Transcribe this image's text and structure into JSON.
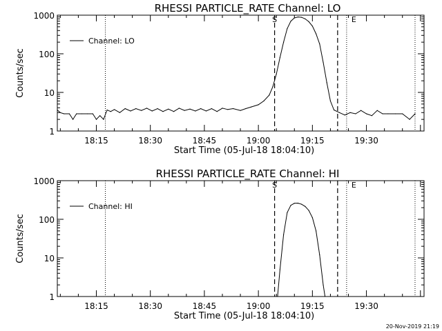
{
  "figure": {
    "footer": "20-Nov-2019 21:19"
  },
  "chart_data": [
    {
      "type": "line",
      "title": "RHESSI PARTICLE_RATE Channel: LO",
      "xlabel": "Start Time (05-Jul-18 18:04:10)",
      "ylabel": "Counts/sec",
      "y_scale": "log",
      "xlim": [
        "18:04:10",
        "19:46:00"
      ],
      "ylim": [
        1,
        1000
      ],
      "x_ticks": [
        "18:15",
        "18:30",
        "18:45",
        "19:00",
        "19:15",
        "19:30"
      ],
      "y_ticks": [
        "1",
        "10",
        "100",
        "1000"
      ],
      "legend": {
        "position": "top-left",
        "entries": [
          "Channel: LO"
        ]
      },
      "markers": [
        {
          "label": "S",
          "time": "19:04:30",
          "style": "dashed"
        },
        {
          "label": "E",
          "time": "19:26:30",
          "style": "dotted"
        }
      ],
      "dashed_lines": [
        "19:04:30",
        "19:22:00"
      ],
      "dotted_lines": [
        "18:04:10",
        "18:17:30",
        "19:24:30",
        "19:43:30"
      ],
      "series": [
        {
          "name": "Channel: LO",
          "points": [
            [
              "18:04:10",
              3.5
            ],
            [
              "18:05:00",
              3.0
            ],
            [
              "18:06:00",
              2.8
            ],
            [
              "18:07:30",
              2.8
            ],
            [
              "18:08:30",
              2.0
            ],
            [
              "18:09:30",
              2.8
            ],
            [
              "18:11:00",
              2.8
            ],
            [
              "18:12:30",
              2.8
            ],
            [
              "18:14:00",
              2.8
            ],
            [
              "18:15:00",
              2.0
            ],
            [
              "18:16:00",
              2.5
            ],
            [
              "18:17:00",
              2.0
            ],
            [
              "18:18:00",
              3.5
            ],
            [
              "18:19:00",
              3.2
            ],
            [
              "18:20:00",
              3.6
            ],
            [
              "18:21:30",
              3.0
            ],
            [
              "18:23:00",
              3.8
            ],
            [
              "18:24:30",
              3.3
            ],
            [
              "18:26:00",
              3.8
            ],
            [
              "18:27:30",
              3.4
            ],
            [
              "18:29:00",
              3.9
            ],
            [
              "18:30:30",
              3.3
            ],
            [
              "18:32:00",
              3.8
            ],
            [
              "18:33:30",
              3.2
            ],
            [
              "18:35:00",
              3.7
            ],
            [
              "18:36:30",
              3.2
            ],
            [
              "18:38:00",
              3.9
            ],
            [
              "18:39:30",
              3.4
            ],
            [
              "18:41:00",
              3.7
            ],
            [
              "18:42:30",
              3.3
            ],
            [
              "18:44:00",
              3.8
            ],
            [
              "18:45:30",
              3.3
            ],
            [
              "18:47:00",
              3.8
            ],
            [
              "18:48:30",
              3.2
            ],
            [
              "18:50:00",
              3.9
            ],
            [
              "18:51:30",
              3.6
            ],
            [
              "18:53:00",
              3.8
            ],
            [
              "18:55:00",
              3.4
            ],
            [
              "18:56:30",
              3.8
            ],
            [
              "18:58:00",
              4.2
            ],
            [
              "19:00:00",
              4.8
            ],
            [
              "19:01:30",
              6.0
            ],
            [
              "19:03:00",
              8.5
            ],
            [
              "19:04:00",
              14.0
            ],
            [
              "19:05:00",
              30.0
            ],
            [
              "19:06:00",
              80.0
            ],
            [
              "19:07:00",
              200.0
            ],
            [
              "19:08:00",
              450.0
            ],
            [
              "19:09:00",
              700.0
            ],
            [
              "19:10:00",
              850.0
            ],
            [
              "19:11:00",
              900.0
            ],
            [
              "19:12:00",
              880.0
            ],
            [
              "19:13:00",
              800.0
            ],
            [
              "19:14:00",
              680.0
            ],
            [
              "19:15:00",
              520.0
            ],
            [
              "19:16:00",
              330.0
            ],
            [
              "19:17:00",
              180.0
            ],
            [
              "19:18:00",
              60.0
            ],
            [
              "19:19:00",
              18.0
            ],
            [
              "19:20:00",
              6.0
            ],
            [
              "19:21:00",
              3.5
            ],
            [
              "19:22:30",
              3.0
            ],
            [
              "19:24:00",
              2.6
            ],
            [
              "19:25:30",
              3.0
            ],
            [
              "19:27:00",
              2.8
            ],
            [
              "19:28:30",
              3.4
            ],
            [
              "19:30:00",
              2.8
            ],
            [
              "19:31:30",
              2.5
            ],
            [
              "19:33:00",
              3.4
            ],
            [
              "19:34:30",
              2.8
            ],
            [
              "19:36:00",
              2.8
            ],
            [
              "19:38:00",
              2.8
            ],
            [
              "19:40:00",
              2.8
            ],
            [
              "19:42:00",
              2.0
            ],
            [
              "19:43:30",
              2.8
            ]
          ]
        }
      ]
    },
    {
      "type": "line",
      "title": "RHESSI PARTICLE_RATE Channel: HI",
      "xlabel": "Start Time (05-Jul-18 18:04:10)",
      "ylabel": "Counts/sec",
      "y_scale": "log",
      "xlim": [
        "18:04:10",
        "19:46:00"
      ],
      "ylim": [
        1,
        1000
      ],
      "x_ticks": [
        "18:15",
        "18:30",
        "18:45",
        "19:00",
        "19:15",
        "19:30"
      ],
      "y_ticks": [
        "1",
        "10",
        "100",
        "1000"
      ],
      "legend": {
        "position": "top-left",
        "entries": [
          "Channel: HI"
        ]
      },
      "markers": [
        {
          "label": "S",
          "time": "19:04:30",
          "style": "dashed"
        },
        {
          "label": "E",
          "time": "19:26:30",
          "style": "dotted"
        }
      ],
      "dashed_lines": [
        "19:04:30",
        "19:22:00"
      ],
      "dotted_lines": [
        "18:04:10",
        "18:17:30",
        "19:24:30",
        "19:43:30"
      ],
      "series": [
        {
          "name": "Channel: HI",
          "points": [
            [
              "19:05:20",
              1.0
            ],
            [
              "19:06:00",
              5.0
            ],
            [
              "19:07:00",
              40.0
            ],
            [
              "19:08:00",
              150.0
            ],
            [
              "19:09:00",
              230.0
            ],
            [
              "19:10:00",
              260.0
            ],
            [
              "19:11:00",
              262.0
            ],
            [
              "19:12:00",
              245.0
            ],
            [
              "19:13:00",
              215.0
            ],
            [
              "19:14:00",
              170.0
            ],
            [
              "19:15:00",
              110.0
            ],
            [
              "19:16:00",
              50.0
            ],
            [
              "19:17:00",
              12.0
            ],
            [
              "19:18:00",
              2.0
            ],
            [
              "19:18:30",
              1.0
            ]
          ]
        }
      ]
    }
  ]
}
